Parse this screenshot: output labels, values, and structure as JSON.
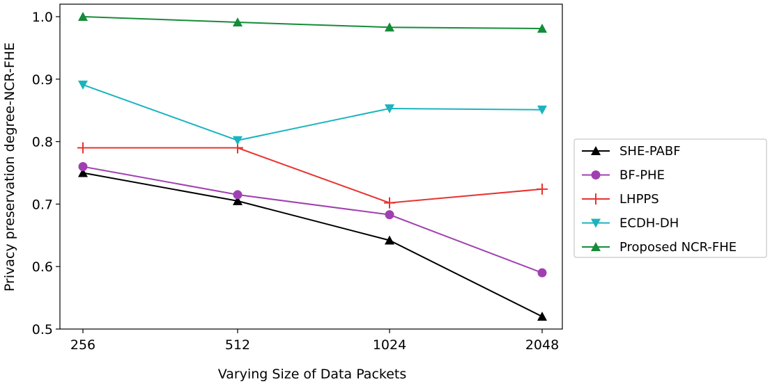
{
  "chart_data": {
    "type": "line",
    "title": "",
    "xlabel": "Varying Size of Data Packets",
    "ylabel": "Privacy preservation degree-NCR-FHE",
    "categories": [
      "256",
      "512",
      "1024",
      "2048"
    ],
    "ylim": [
      0.5,
      1.02
    ],
    "yticks": [
      0.5,
      0.6,
      0.7,
      0.8,
      0.9,
      1.0
    ],
    "ytick_labels": [
      "0.5",
      "0.6",
      "0.7",
      "0.8",
      "0.9",
      "1.0"
    ],
    "grid": false,
    "legend_position": "outside-right",
    "series": [
      {
        "name": "SHE-PABF",
        "values": [
          0.75,
          0.705,
          0.642,
          0.52
        ],
        "color": "#000000",
        "marker": "triangle-up"
      },
      {
        "name": "BF-PHE",
        "values": [
          0.76,
          0.715,
          0.683,
          0.59
        ],
        "color": "#a040b0",
        "marker": "circle"
      },
      {
        "name": "LHPPS",
        "values": [
          0.79,
          0.79,
          0.702,
          0.724
        ],
        "color": "#e8322e",
        "marker": "plus"
      },
      {
        "name": "ECDH-DH",
        "values": [
          0.891,
          0.802,
          0.853,
          0.851
        ],
        "color": "#1ab4be",
        "marker": "triangle-down"
      },
      {
        "name": "Proposed NCR-FHE",
        "values": [
          1.0,
          0.991,
          0.983,
          0.981
        ],
        "color": "#158c38",
        "marker": "triangle-up"
      }
    ]
  }
}
